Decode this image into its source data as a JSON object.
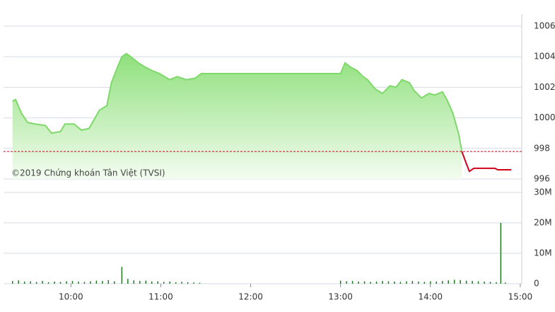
{
  "chart_data": [
    {
      "type": "line",
      "annotation": "©2019 Chứng khoán Tân Việt (TVSI)",
      "x": [
        561,
        563,
        567,
        571,
        576,
        583,
        587,
        593,
        596,
        602,
        607,
        612,
        615,
        619,
        624,
        627,
        631,
        634,
        637,
        640,
        645,
        650,
        654,
        659,
        666,
        671,
        677,
        683,
        687,
        780,
        783,
        787,
        791,
        795,
        798,
        803,
        808,
        813,
        817,
        821,
        826,
        829,
        834,
        839,
        843,
        848,
        851,
        855,
        859,
        861,
        864,
        866,
        869,
        874,
        883,
        885,
        894
      ],
      "series": [
        {
          "color": "#7ed86a",
          "values": [
            1001.1,
            1001.2,
            1000.3,
            999.7,
            999.6,
            999.5,
            999.0,
            999.1,
            999.6,
            999.6,
            999.2,
            999.3,
            999.8,
            1000.5,
            1000.8,
            1002.3,
            1003.3,
            1004.0,
            1004.2,
            1004.0,
            1003.6,
            1003.3,
            1003.1,
            1002.9,
            1002.5,
            1002.7,
            1002.5,
            1002.6,
            1002.9,
            1002.9,
            1003.6,
            1003.3,
            1003.1,
            1002.7,
            1002.5,
            1001.9,
            1001.6,
            1002.1,
            1002.0,
            1002.5,
            1002.3,
            1001.8,
            1001.3,
            1001.6,
            1001.5,
            1001.7,
            1001.2,
            1000.3,
            998.9,
            997.8,
            null,
            null,
            null,
            null,
            null,
            null,
            null
          ]
        },
        {
          "color": "#d0021b",
          "values": [
            null,
            null,
            null,
            null,
            null,
            null,
            null,
            null,
            null,
            null,
            null,
            null,
            null,
            null,
            null,
            null,
            null,
            null,
            null,
            null,
            null,
            null,
            null,
            null,
            null,
            null,
            null,
            null,
            null,
            null,
            null,
            null,
            null,
            null,
            null,
            null,
            null,
            null,
            null,
            null,
            null,
            null,
            null,
            null,
            null,
            null,
            null,
            null,
            null,
            997.8,
            997.0,
            996.5,
            996.7,
            996.7,
            996.7,
            996.6,
            996.6
          ]
        }
      ],
      "reference": 997.8,
      "reference_color": "#d0021b",
      "xlim": [
        555,
        901
      ],
      "ylim": [
        996,
        1006
      ],
      "yticks": [
        996,
        998,
        1000,
        1002,
        1004,
        1006
      ],
      "grid": true
    },
    {
      "type": "bar",
      "x": [
        561,
        565,
        569,
        573,
        577,
        581,
        585,
        589,
        593,
        597,
        601,
        605,
        609,
        613,
        617,
        621,
        625,
        629,
        634,
        638,
        642,
        646,
        650,
        654,
        658,
        662,
        666,
        670,
        674,
        678,
        682,
        686,
        780,
        784,
        788,
        792,
        796,
        800,
        804,
        808,
        812,
        816,
        820,
        824,
        828,
        832,
        836,
        840,
        844,
        848,
        852,
        856,
        860,
        864,
        868,
        872,
        876,
        880,
        884,
        887,
        890
      ],
      "values": [
        0.9,
        1.1,
        0.7,
        0.8,
        0.6,
        0.9,
        0.5,
        0.7,
        0.6,
        0.8,
        0.9,
        0.7,
        0.6,
        0.8,
        1.0,
        0.9,
        1.2,
        0.8,
        5.5,
        1.6,
        1.1,
        0.9,
        1.0,
        0.7,
        0.8,
        0.6,
        0.7,
        0.5,
        0.6,
        0.5,
        0.4,
        0.3,
        1.0,
        0.8,
        0.9,
        0.7,
        0.8,
        0.6,
        0.7,
        0.9,
        0.8,
        0.7,
        0.6,
        0.8,
        0.9,
        0.7,
        0.6,
        0.8,
        0.7,
        0.9,
        1.1,
        1.3,
        1.2,
        1.0,
        0.9,
        0.8,
        0.7,
        0.6,
        0.5,
        20,
        0.4
      ],
      "color": "#1f7a1f",
      "xlim": [
        555,
        901
      ],
      "xticks": [
        {
          "value": 600,
          "label": "10:00"
        },
        {
          "value": 660,
          "label": "11:00"
        },
        {
          "value": 720,
          "label": "12:00"
        },
        {
          "value": 780,
          "label": "13:00"
        },
        {
          "value": 840,
          "label": "14:00"
        },
        {
          "value": 900,
          "label": "15:00"
        }
      ],
      "ylim": [
        0,
        30
      ],
      "yticks": [
        0,
        {
          "value": 10,
          "label": "10M"
        },
        {
          "value": 20,
          "label": "20M"
        },
        {
          "value": 30,
          "label": "30M"
        }
      ],
      "grid": true
    }
  ]
}
